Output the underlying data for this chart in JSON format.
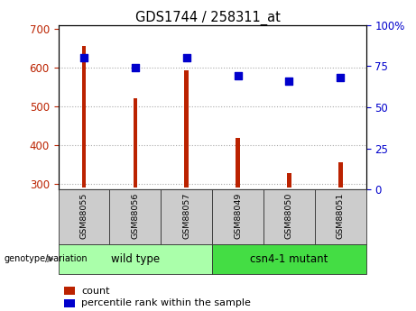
{
  "title": "GDS1744 / 258311_at",
  "categories": [
    "GSM88055",
    "GSM88056",
    "GSM88057",
    "GSM88049",
    "GSM88050",
    "GSM88051"
  ],
  "bar_values": [
    655,
    520,
    592,
    418,
    328,
    355
  ],
  "scatter_values": [
    80,
    74,
    80,
    69,
    66,
    68
  ],
  "bar_color": "#bb2200",
  "scatter_color": "#0000cc",
  "ylim_left": [
    285,
    710
  ],
  "ylim_right": [
    0,
    100
  ],
  "yticks_left": [
    300,
    400,
    500,
    600,
    700
  ],
  "yticks_right": [
    0,
    25,
    50,
    75,
    100
  ],
  "yticklabels_right": [
    "0",
    "25",
    "50",
    "75",
    "100%"
  ],
  "groups": [
    {
      "label": "wild type",
      "indices": [
        0,
        1,
        2
      ],
      "color": "#aaffaa"
    },
    {
      "label": "csn4-1 mutant",
      "indices": [
        3,
        4,
        5
      ],
      "color": "#44dd44"
    }
  ],
  "group_label": "genotype/variation",
  "legend_count_label": "count",
  "legend_percentile_label": "percentile rank within the sample",
  "bar_width": 0.08,
  "baseline": 290,
  "grid_linestyle": ":",
  "grid_linewidth": 0.8,
  "label_box_color": "#cccccc",
  "label_box_edgecolor": "#333333"
}
